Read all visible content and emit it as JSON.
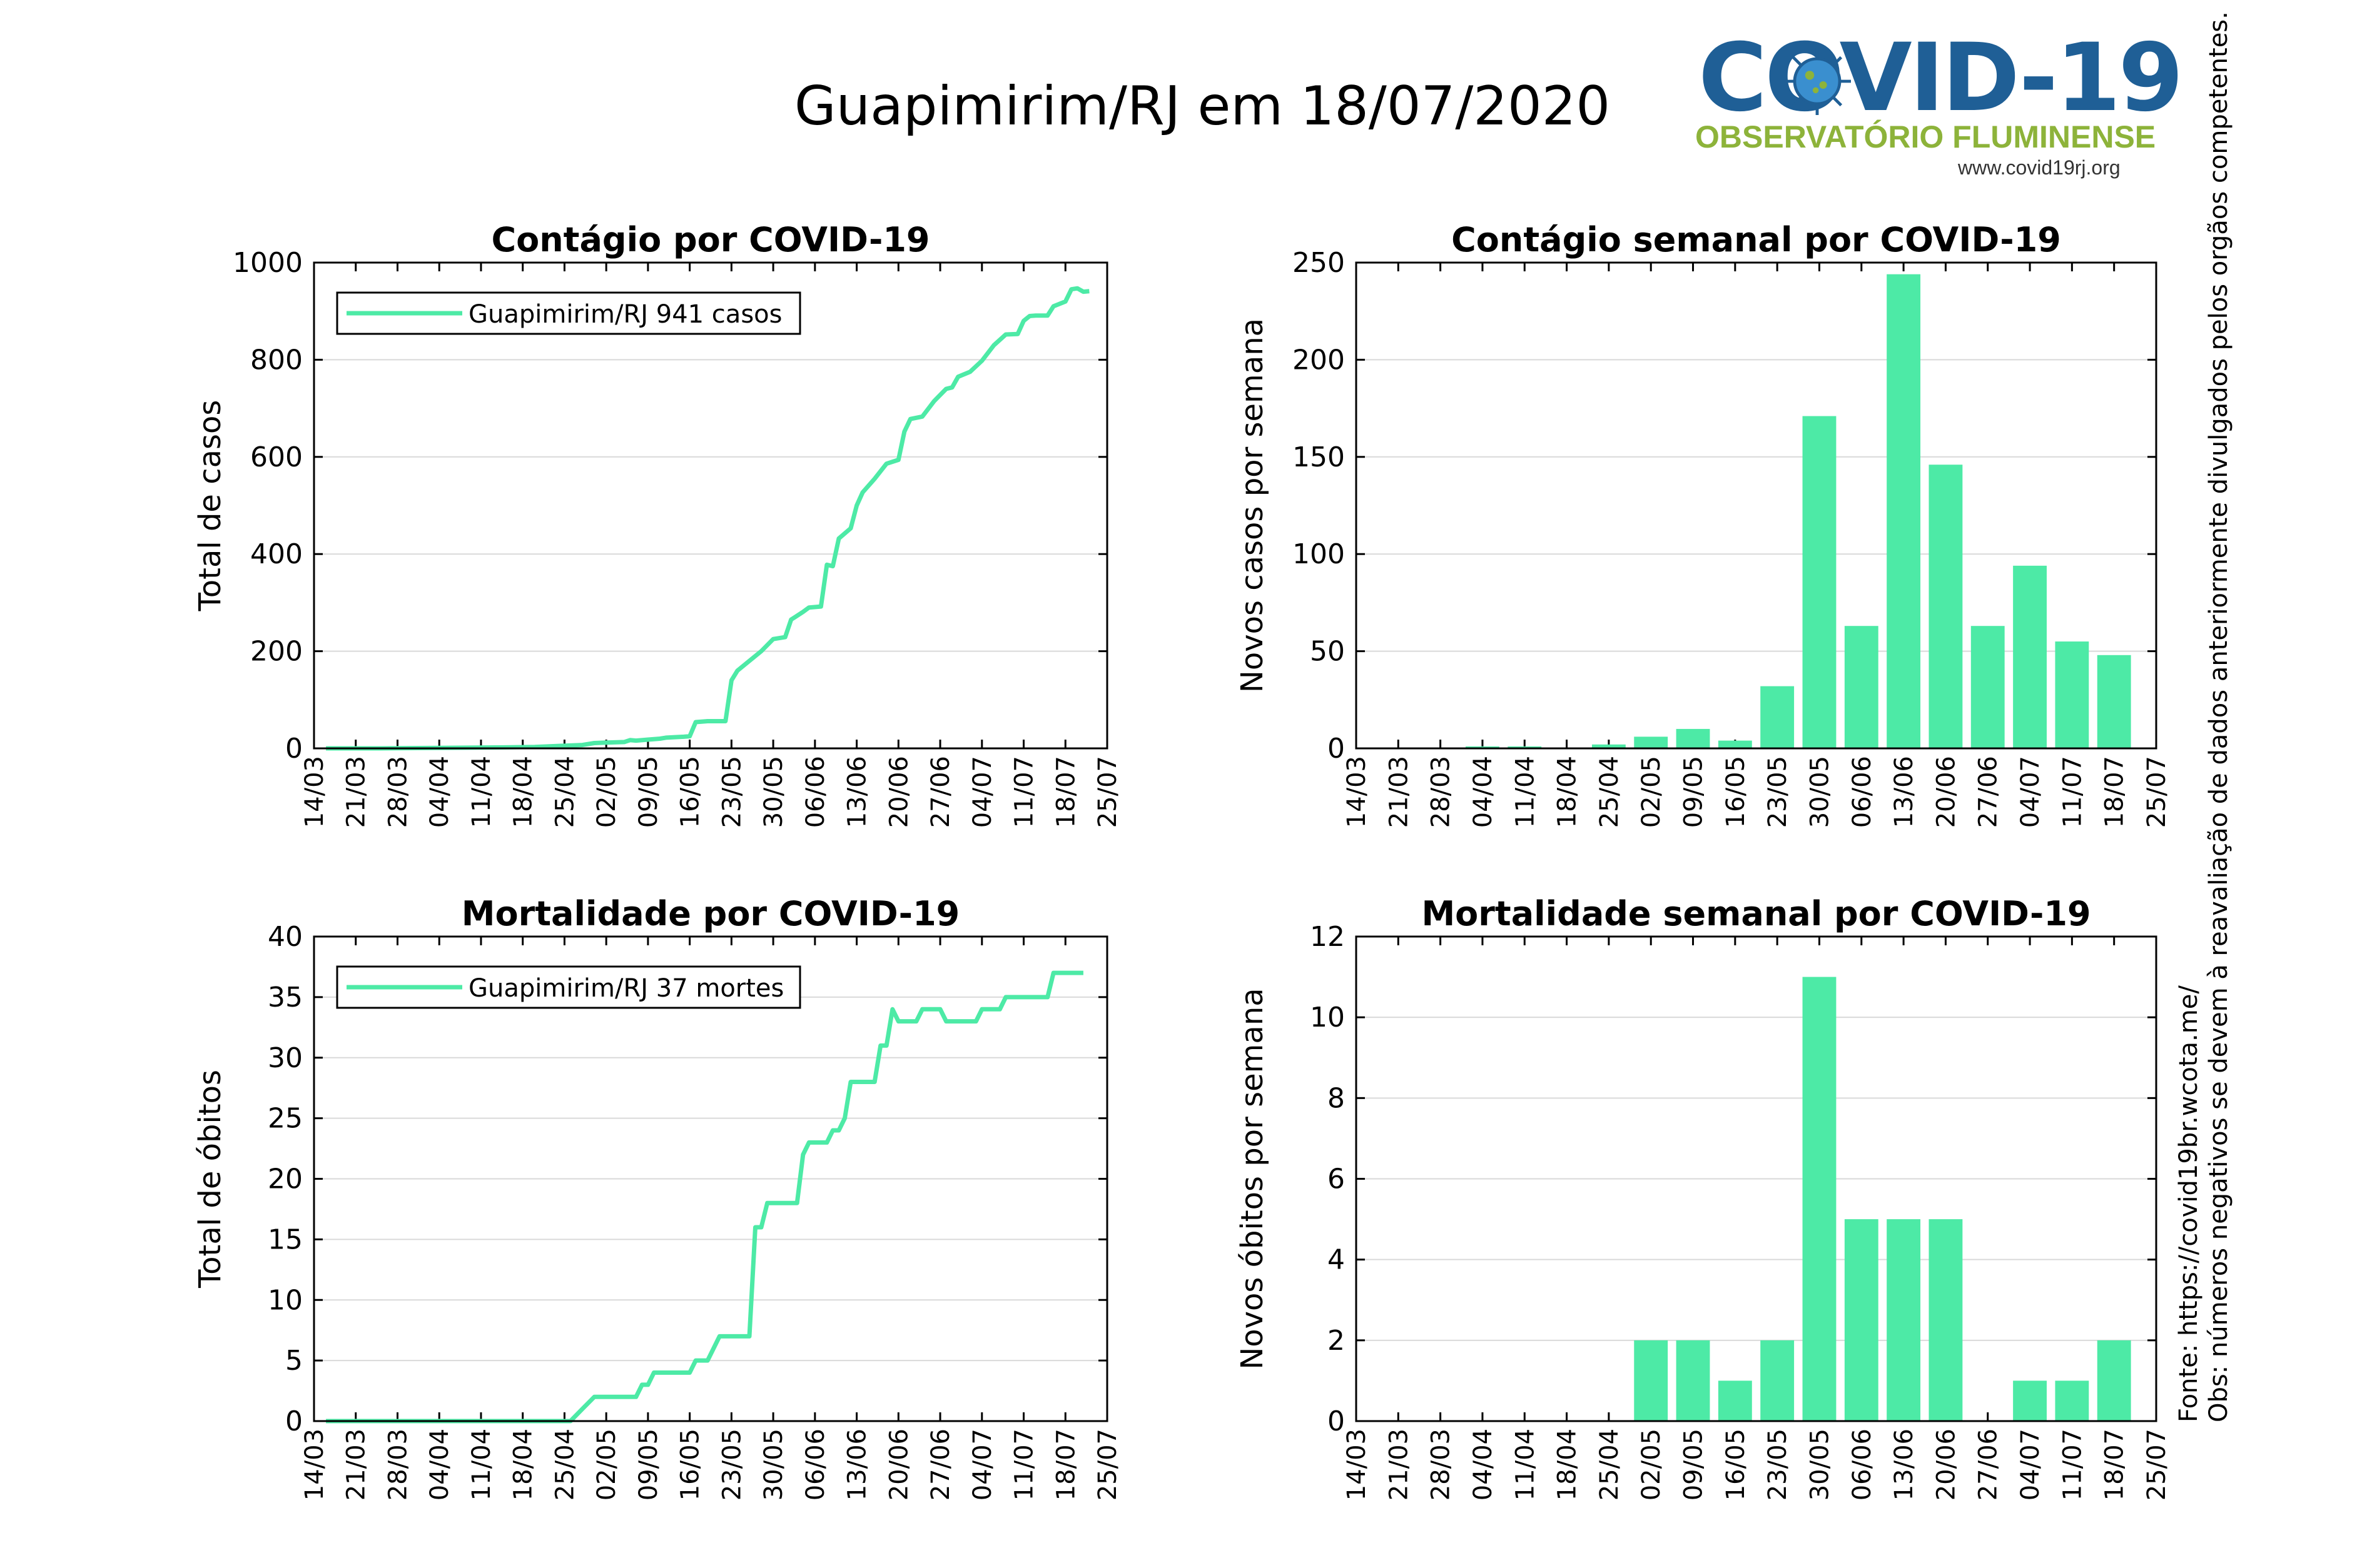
{
  "title": "Guapimirim/RJ em 18/07/2020",
  "logo": {
    "text_big": "COVID-19",
    "subtitle": "OBSERVATÓRIO FLUMINENSE",
    "url": "www.covid19rj.org",
    "colors": {
      "main": "#1f5f96",
      "sub": "#8db33a"
    }
  },
  "side_note": {
    "source": "Fonte: https://covid19br.wcota.me/",
    "note": "Obs: números negativos se devem à reavaliação de dados anteriormente divulgados pelos orgãos competentes."
  },
  "colors": {
    "series": "#4deaa6",
    "grid": "#d9d9d9"
  },
  "chart_data": [
    {
      "id": "cases-cumulative",
      "type": "line",
      "title": "Contágio por COVID-19",
      "ylabel": "Total de casos",
      "xlabel": "",
      "x_ticks": [
        "14/03",
        "21/03",
        "28/03",
        "04/04",
        "11/04",
        "18/04",
        "25/04",
        "02/05",
        "09/05",
        "16/05",
        "23/05",
        "30/05",
        "06/06",
        "13/06",
        "20/06",
        "27/06",
        "04/07",
        "11/07",
        "18/07",
        "25/07"
      ],
      "ylim": [
        0,
        1000
      ],
      "y_ticks": [
        0,
        200,
        400,
        600,
        800,
        1000
      ],
      "grid": true,
      "legend": "top-left",
      "series": [
        {
          "name": "Guapimirim/RJ  941 casos",
          "color": "#4deaa6",
          "points": [
            [
              "16/03",
              0
            ],
            [
              "25/03",
              0
            ],
            [
              "04/04",
              1
            ],
            [
              "15/04",
              2
            ],
            [
              "20/04",
              3
            ],
            [
              "24/04",
              5
            ],
            [
              "28/04",
              7
            ],
            [
              "30/04",
              11
            ],
            [
              "02/05",
              12
            ],
            [
              "05/05",
              13
            ],
            [
              "06/05",
              17
            ],
            [
              "07/05",
              16
            ],
            [
              "09/05",
              18
            ],
            [
              "11/05",
              20
            ],
            [
              "12/05",
              22
            ],
            [
              "15/05",
              24
            ],
            [
              "16/05",
              25
            ],
            [
              "17/05",
              54
            ],
            [
              "19/05",
              56
            ],
            [
              "22/05",
              56
            ],
            [
              "23/05",
              140
            ],
            [
              "24/05",
              160
            ],
            [
              "26/05",
              180
            ],
            [
              "28/05",
              200
            ],
            [
              "30/05",
              225
            ],
            [
              "01/06",
              229
            ],
            [
              "02/06",
              265
            ],
            [
              "04/06",
              281
            ],
            [
              "05/06",
              290
            ],
            [
              "07/06",
              292
            ],
            [
              "08/06",
              378
            ],
            [
              "09/06",
              375
            ],
            [
              "10/06",
              432
            ],
            [
              "12/06",
              453
            ],
            [
              "13/06",
              500
            ],
            [
              "14/06",
              527
            ],
            [
              "16/06",
              555
            ],
            [
              "18/06",
              586
            ],
            [
              "20/06",
              594
            ],
            [
              "21/06",
              652
            ],
            [
              "22/06",
              678
            ],
            [
              "24/06",
              683
            ],
            [
              "26/06",
              715
            ],
            [
              "28/06",
              740
            ],
            [
              "29/06",
              743
            ],
            [
              "30/06",
              765
            ],
            [
              "02/07",
              775
            ],
            [
              "04/07",
              798
            ],
            [
              "06/07",
              830
            ],
            [
              "08/07",
              852
            ],
            [
              "10/07",
              853
            ],
            [
              "11/07",
              880
            ],
            [
              "12/07",
              890
            ],
            [
              "13/07",
              891
            ],
            [
              "15/07",
              891
            ],
            [
              "16/07",
              910
            ],
            [
              "18/07",
              920
            ],
            [
              "19/07",
              945
            ],
            [
              "20/07",
              947
            ],
            [
              "21/07",
              940
            ],
            [
              "22/07",
              941
            ]
          ]
        }
      ]
    },
    {
      "id": "cases-weekly",
      "type": "bar",
      "title": "Contágio semanal por COVID-19",
      "ylabel": "Novos casos por semana",
      "xlabel": "",
      "x_ticks": [
        "14/03",
        "21/03",
        "28/03",
        "04/04",
        "11/04",
        "18/04",
        "25/04",
        "02/05",
        "09/05",
        "16/05",
        "23/05",
        "30/05",
        "06/06",
        "13/06",
        "20/06",
        "27/06",
        "04/07",
        "11/07",
        "18/07",
        "25/07"
      ],
      "ylim": [
        0,
        250
      ],
      "y_ticks": [
        0,
        50,
        100,
        150,
        200,
        250
      ],
      "grid": true,
      "categories": [
        "21/03",
        "28/03",
        "04/04",
        "11/04",
        "18/04",
        "25/04",
        "02/05",
        "09/05",
        "16/05",
        "23/05",
        "30/05",
        "06/06",
        "13/06",
        "20/06",
        "27/06",
        "04/07",
        "11/07",
        "18/07"
      ],
      "values": [
        0,
        0,
        1,
        1,
        0,
        2,
        6,
        10,
        4,
        32,
        171,
        63,
        244,
        146,
        63,
        94,
        55,
        48
      ],
      "color": "#4deaa6"
    },
    {
      "id": "deaths-cumulative",
      "type": "line",
      "title": "Mortalidade por COVID-19",
      "ylabel": "Total de óbitos",
      "xlabel": "",
      "x_ticks": [
        "14/03",
        "21/03",
        "28/03",
        "04/04",
        "11/04",
        "18/04",
        "25/04",
        "02/05",
        "09/05",
        "16/05",
        "23/05",
        "30/05",
        "06/06",
        "13/06",
        "20/06",
        "27/06",
        "04/07",
        "11/07",
        "18/07",
        "25/07"
      ],
      "ylim": [
        0,
        40
      ],
      "y_ticks": [
        0,
        5,
        10,
        15,
        20,
        25,
        30,
        35,
        40
      ],
      "grid": true,
      "legend": "top-left",
      "series": [
        {
          "name": "Guapimirim/RJ  37 mortes",
          "color": "#4deaa6",
          "points": [
            [
              "16/03",
              0
            ],
            [
              "26/04",
              0
            ],
            [
              "28/04",
              1
            ],
            [
              "30/04",
              2
            ],
            [
              "07/05",
              2
            ],
            [
              "08/05",
              3
            ],
            [
              "09/05",
              3
            ],
            [
              "10/05",
              4
            ],
            [
              "16/05",
              4
            ],
            [
              "17/05",
              5
            ],
            [
              "19/05",
              5
            ],
            [
              "21/05",
              7
            ],
            [
              "26/05",
              7
            ],
            [
              "27/05",
              16
            ],
            [
              "28/05",
              16
            ],
            [
              "29/05",
              18
            ],
            [
              "03/06",
              18
            ],
            [
              "04/06",
              22
            ],
            [
              "05/06",
              23
            ],
            [
              "08/06",
              23
            ],
            [
              "09/06",
              24
            ],
            [
              "10/06",
              24
            ],
            [
              "11/06",
              25
            ],
            [
              "12/06",
              28
            ],
            [
              "16/06",
              28
            ],
            [
              "17/06",
              31
            ],
            [
              "18/06",
              31
            ],
            [
              "19/06",
              34
            ],
            [
              "20/06",
              33
            ],
            [
              "23/06",
              33
            ],
            [
              "24/06",
              34
            ],
            [
              "27/06",
              34
            ],
            [
              "28/06",
              33
            ],
            [
              "03/07",
              33
            ],
            [
              "04/07",
              34
            ],
            [
              "07/07",
              34
            ],
            [
              "08/07",
              35
            ],
            [
              "15/07",
              35
            ],
            [
              "16/07",
              37
            ],
            [
              "21/07",
              37
            ]
          ]
        }
      ]
    },
    {
      "id": "deaths-weekly",
      "type": "bar",
      "title": "Mortalidade semanal por COVID-19",
      "ylabel": "Novos óbitos por semana",
      "xlabel": "",
      "x_ticks": [
        "14/03",
        "21/03",
        "28/03",
        "04/04",
        "11/04",
        "18/04",
        "25/04",
        "02/05",
        "09/05",
        "16/05",
        "23/05",
        "30/05",
        "06/06",
        "13/06",
        "20/06",
        "27/06",
        "04/07",
        "11/07",
        "18/07",
        "25/07"
      ],
      "ylim": [
        0,
        12
      ],
      "y_ticks": [
        0,
        2,
        4,
        6,
        8,
        10,
        12
      ],
      "grid": true,
      "categories": [
        "21/03",
        "28/03",
        "04/04",
        "11/04",
        "18/04",
        "25/04",
        "02/05",
        "09/05",
        "16/05",
        "23/05",
        "30/05",
        "06/06",
        "13/06",
        "20/06",
        "27/06",
        "04/07",
        "11/07",
        "18/07"
      ],
      "values": [
        0,
        0,
        0,
        0,
        0,
        0,
        2,
        2,
        1,
        2,
        11,
        5,
        5,
        5,
        0,
        1,
        1,
        2
      ],
      "color": "#4deaa6"
    }
  ]
}
